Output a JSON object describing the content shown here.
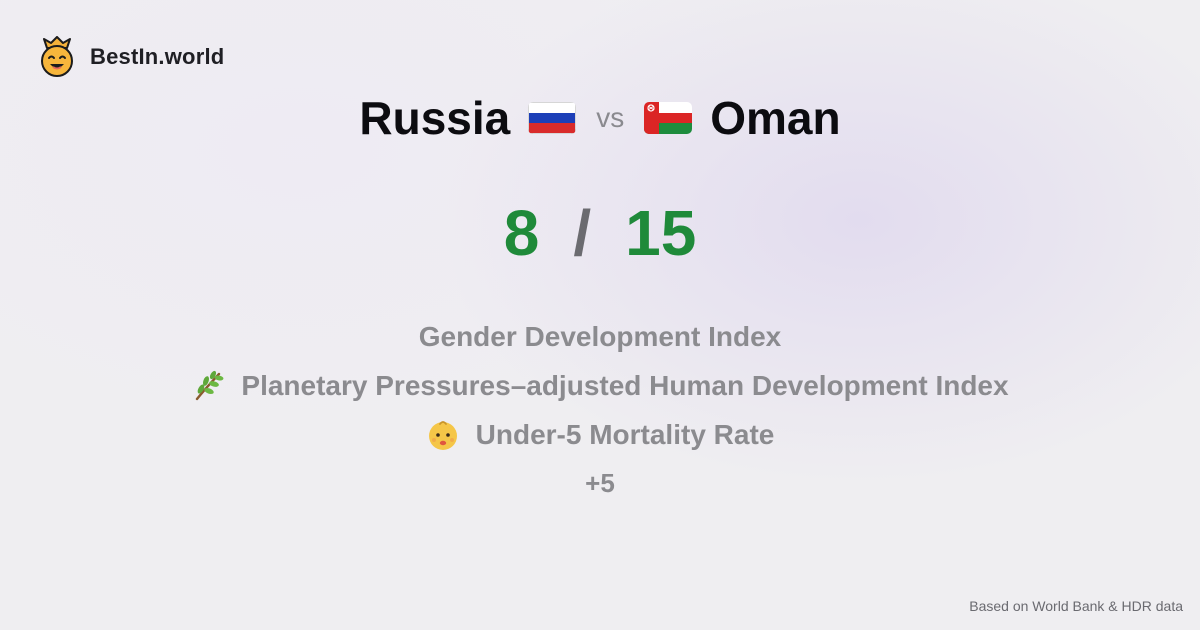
{
  "brand": {
    "name": "BestIn.world",
    "icon": "crowned-smiley-icon"
  },
  "title": {
    "left_country": "Russia",
    "left_flag": "russia-flag-icon",
    "vs_label": "vs",
    "right_country": "Oman",
    "right_flag": "oman-flag-icon"
  },
  "score": {
    "left": "8",
    "separator": "/",
    "right": "15",
    "color": "#1f8a3a"
  },
  "metrics": [
    {
      "label": "Gender Development Index",
      "icon": ""
    },
    {
      "label": "Planetary Pressures–adjusted Human Development Index",
      "icon": "herb-icon"
    },
    {
      "label": "Under-5 Mortality Rate",
      "icon": "baby-icon"
    }
  ],
  "more_label": "+5",
  "footer": {
    "source": "Based on World Bank & HDR data"
  }
}
